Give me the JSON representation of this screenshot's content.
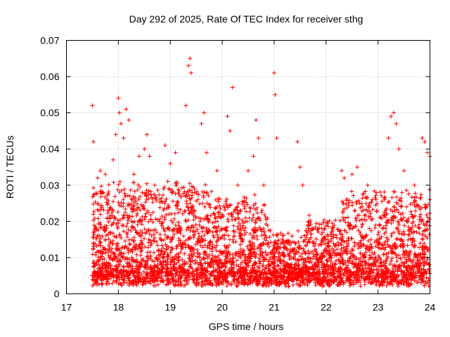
{
  "chart_data": {
    "type": "scatter",
    "title": "Day 292 of 2025, Rate Of TEC Index for receiver sthg",
    "xlabel": "GPS time / hours",
    "ylabel": "ROTI / TECUs",
    "xlim": [
      17,
      24
    ],
    "ylim": [
      0,
      0.07
    ],
    "xticks": [
      "17",
      "18",
      "19",
      "20",
      "21",
      "22",
      "23",
      "24"
    ],
    "yticks": [
      "0",
      "0.01",
      "0.02",
      "0.03",
      "0.04",
      "0.05",
      "0.06",
      "0.07"
    ],
    "grid": true,
    "marker": "+",
    "series": [
      {
        "name": "ROTI",
        "color": "#ff0000",
        "points": [
          [
            17.5,
            0.052
          ],
          [
            17.52,
            0.042
          ],
          [
            17.55,
            0.018
          ],
          [
            17.6,
            0.032
          ],
          [
            17.65,
            0.034
          ],
          [
            17.7,
            0.028
          ],
          [
            17.75,
            0.033
          ],
          [
            17.8,
            0.025
          ],
          [
            17.9,
            0.037
          ],
          [
            17.95,
            0.044
          ],
          [
            18.0,
            0.054
          ],
          [
            18.02,
            0.05
          ],
          [
            18.05,
            0.047
          ],
          [
            18.1,
            0.043
          ],
          [
            18.15,
            0.051
          ],
          [
            18.2,
            0.048
          ],
          [
            18.3,
            0.033
          ],
          [
            18.4,
            0.038
          ],
          [
            18.5,
            0.04
          ],
          [
            18.55,
            0.044
          ],
          [
            18.6,
            0.038
          ],
          [
            18.7,
            0.03
          ],
          [
            18.9,
            0.041
          ],
          [
            19.0,
            0.036
          ],
          [
            19.1,
            0.039
          ],
          [
            19.3,
            0.052
          ],
          [
            19.35,
            0.063
          ],
          [
            19.38,
            0.065
          ],
          [
            19.4,
            0.061
          ],
          [
            19.6,
            0.047
          ],
          [
            19.65,
            0.05
          ],
          [
            19.7,
            0.039
          ],
          [
            19.9,
            0.034
          ],
          [
            20.1,
            0.049
          ],
          [
            20.15,
            0.045
          ],
          [
            20.2,
            0.057
          ],
          [
            20.3,
            0.03
          ],
          [
            20.5,
            0.034
          ],
          [
            20.6,
            0.038
          ],
          [
            20.65,
            0.048
          ],
          [
            20.7,
            0.043
          ],
          [
            20.8,
            0.03
          ],
          [
            21.0,
            0.061
          ],
          [
            21.02,
            0.055
          ],
          [
            21.05,
            0.043
          ],
          [
            21.45,
            0.042
          ],
          [
            21.5,
            0.035
          ],
          [
            21.55,
            0.03
          ],
          [
            22.3,
            0.034
          ],
          [
            22.35,
            0.032
          ],
          [
            22.5,
            0.033
          ],
          [
            22.6,
            0.035
          ],
          [
            22.8,
            0.03
          ],
          [
            23.2,
            0.043
          ],
          [
            23.25,
            0.049
          ],
          [
            23.3,
            0.05
          ],
          [
            23.35,
            0.047
          ],
          [
            23.4,
            0.04
          ],
          [
            23.5,
            0.034
          ],
          [
            23.7,
            0.03
          ],
          [
            23.85,
            0.043
          ],
          [
            23.9,
            0.042
          ],
          [
            23.95,
            0.039
          ],
          [
            24.0,
            0.038
          ]
        ]
      }
    ]
  }
}
